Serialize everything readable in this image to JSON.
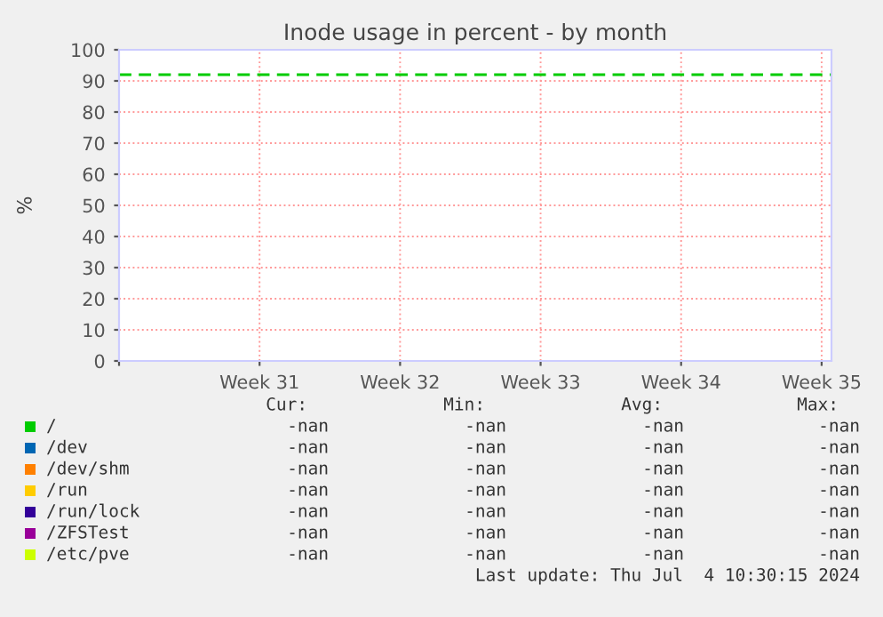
{
  "chart_data": {
    "type": "line",
    "title": "Inode usage in percent - by month",
    "ylabel": "%",
    "categories": [
      null,
      "Week 31",
      "Week 32",
      "Week 33",
      "Week 34",
      "Week 35"
    ],
    "ylim": [
      0,
      100
    ],
    "yticks": [
      0,
      10,
      20,
      30,
      40,
      50,
      60,
      70,
      80,
      90,
      100
    ],
    "grid": true,
    "legend": "bottom",
    "ref_lines": [
      {
        "axis": "y",
        "value": 92,
        "color": "#00cc00",
        "line_style": "dashed"
      }
    ],
    "annotations": [
      "Cur:",
      "Min:",
      "Avg:",
      "Max:",
      "-nan",
      "-nan",
      "-nan",
      "-nan",
      "-nan",
      "-nan",
      "-nan",
      "-nan",
      "-nan",
      "-nan",
      "-nan",
      "-nan",
      "-nan",
      "-nan",
      "-nan",
      "-nan",
      "-nan",
      "-nan",
      "-nan",
      "-nan",
      "-nan",
      "-nan",
      "-nan",
      "-nan",
      "-nan",
      "-nan",
      "-nan",
      "-nan",
      "Last update: Thu Jul  4 10:30:15 2024"
    ],
    "series": [
      {
        "name": "/",
        "color": "#00cc00",
        "values": [
          null,
          null,
          null,
          null,
          null,
          null
        ]
      },
      {
        "name": "/dev",
        "color": "#0066b3",
        "values": [
          null,
          null,
          null,
          null,
          null,
          null
        ]
      },
      {
        "name": "/dev/shm",
        "color": "#ff8000",
        "values": [
          null,
          null,
          null,
          null,
          null,
          null
        ]
      },
      {
        "name": "/run",
        "color": "#ffcc00",
        "values": [
          null,
          null,
          null,
          null,
          null,
          null
        ]
      },
      {
        "name": "/run/lock",
        "color": "#330099",
        "values": [
          null,
          null,
          null,
          null,
          null,
          null
        ]
      },
      {
        "name": "/ZFSTest",
        "color": "#990099",
        "values": [
          null,
          null,
          null,
          null,
          null,
          null
        ]
      },
      {
        "name": "/etc/pve",
        "color": "#ccff00",
        "values": [
          null,
          null,
          null,
          null,
          null,
          null
        ]
      }
    ]
  }
}
